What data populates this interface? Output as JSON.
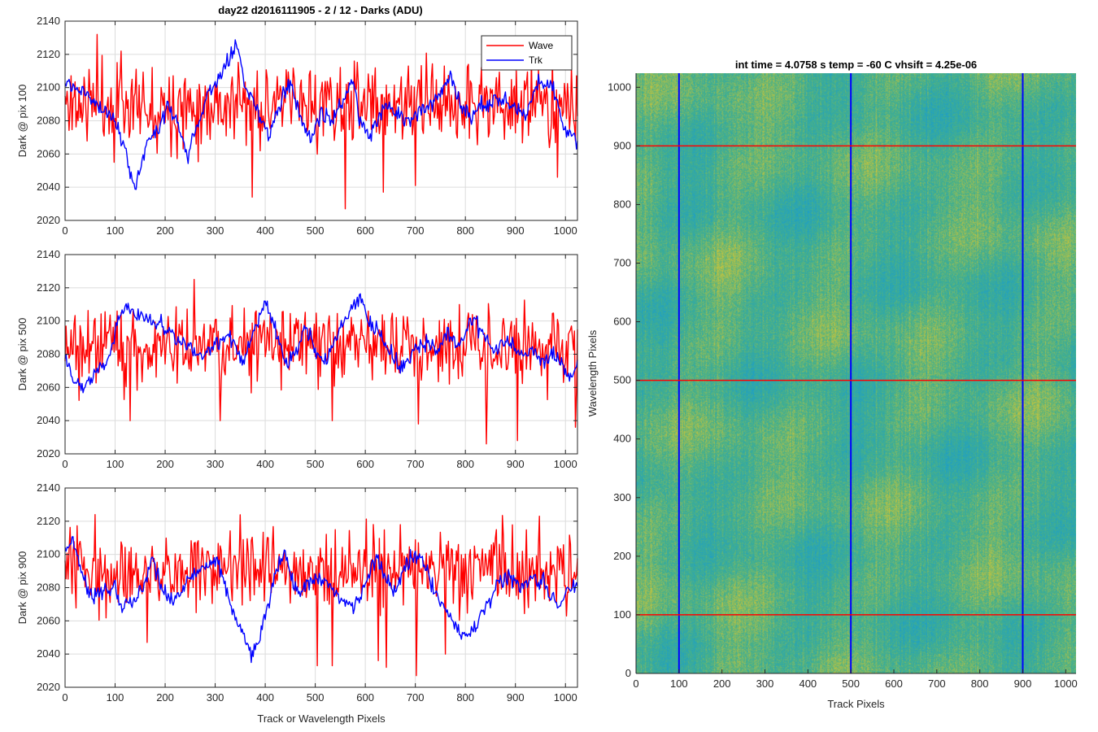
{
  "figure": {
    "title": "day22 d2016111905 - 2 / 12 - Darks (ADU)"
  },
  "chart_data": [
    {
      "type": "line",
      "ylabel": "Dark @ pix 100",
      "xlabel": "",
      "xlim": [
        0,
        1024
      ],
      "ylim": [
        2020,
        2140
      ],
      "xticks": [
        0,
        100,
        200,
        300,
        400,
        500,
        600,
        700,
        800,
        900,
        1000
      ],
      "yticks": [
        2020,
        2040,
        2060,
        2080,
        2100,
        2120,
        2140
      ],
      "grid": true,
      "legend": {
        "location": "top-right",
        "entries": [
          "Wave",
          "Trk"
        ]
      },
      "series": [
        {
          "name": "Wave",
          "color": "#ff0000",
          "mean": 2090,
          "noise": 12,
          "seed": 11,
          "sample_every": 2,
          "spikes": [
            [
              65,
              2132
            ],
            [
              98,
              2055
            ],
            [
              112,
              2122
            ],
            [
              375,
              2034
            ],
            [
              560,
              2027
            ],
            [
              637,
              2037
            ],
            [
              700,
              2041
            ],
            [
              985,
              2046
            ]
          ]
        },
        {
          "name": "Trk",
          "color": "#0000ff",
          "noise": 4,
          "seed": 12,
          "sample_every": 2,
          "anchors": [
            [
              0,
              2103
            ],
            [
              20,
              2102
            ],
            [
              60,
              2092
            ],
            [
              95,
              2082
            ],
            [
              110,
              2072
            ],
            [
              122,
              2062
            ],
            [
              130,
              2045
            ],
            [
              140,
              2041
            ],
            [
              165,
              2068
            ],
            [
              190,
              2076
            ],
            [
              205,
              2090
            ],
            [
              225,
              2078
            ],
            [
              245,
              2058
            ],
            [
              265,
              2078
            ],
            [
              285,
              2098
            ],
            [
              305,
              2103
            ],
            [
              325,
              2116
            ],
            [
              345,
              2127
            ],
            [
              360,
              2100
            ],
            [
              385,
              2086
            ],
            [
              408,
              2070
            ],
            [
              420,
              2083
            ],
            [
              450,
              2105
            ],
            [
              470,
              2082
            ],
            [
              490,
              2068
            ],
            [
              510,
              2085
            ],
            [
              535,
              2080
            ],
            [
              555,
              2093
            ],
            [
              575,
              2105
            ],
            [
              590,
              2080
            ],
            [
              610,
              2072
            ],
            [
              640,
              2089
            ],
            [
              665,
              2083
            ],
            [
              690,
              2080
            ],
            [
              720,
              2090
            ],
            [
              745,
              2095
            ],
            [
              770,
              2107
            ],
            [
              790,
              2090
            ],
            [
              810,
              2083
            ],
            [
              830,
              2088
            ],
            [
              860,
              2094
            ],
            [
              890,
              2090
            ],
            [
              920,
              2083
            ],
            [
              950,
              2106
            ],
            [
              975,
              2101
            ],
            [
              995,
              2076
            ],
            [
              1024,
              2068
            ]
          ]
        }
      ]
    },
    {
      "type": "line",
      "ylabel": "Dark @ pix 500",
      "xlabel": "",
      "xlim": [
        0,
        1024
      ],
      "ylim": [
        2020,
        2140
      ],
      "xticks": [
        0,
        100,
        200,
        300,
        400,
        500,
        600,
        700,
        800,
        900,
        1000
      ],
      "yticks": [
        2020,
        2040,
        2060,
        2080,
        2100,
        2120,
        2140
      ],
      "grid": true,
      "series": [
        {
          "name": "Wave",
          "color": "#ff0000",
          "mean": 2085,
          "noise": 12,
          "seed": 21,
          "sample_every": 2,
          "spikes": [
            [
              130,
              2040
            ],
            [
              258,
              2125
            ],
            [
              310,
              2040
            ],
            [
              535,
              2040
            ],
            [
              707,
              2038
            ],
            [
              842,
              2026
            ],
            [
              905,
              2028
            ],
            [
              1020,
              2036
            ]
          ]
        },
        {
          "name": "Trk",
          "color": "#0000ff",
          "noise": 4,
          "seed": 22,
          "sample_every": 2,
          "anchors": [
            [
              0,
              2080
            ],
            [
              15,
              2068
            ],
            [
              35,
              2060
            ],
            [
              60,
              2068
            ],
            [
              80,
              2075
            ],
            [
              95,
              2086
            ],
            [
              105,
              2098
            ],
            [
              120,
              2110
            ],
            [
              145,
              2103
            ],
            [
              170,
              2100
            ],
            [
              200,
              2096
            ],
            [
              230,
              2088
            ],
            [
              255,
              2082
            ],
            [
              275,
              2078
            ],
            [
              300,
              2086
            ],
            [
              330,
              2090
            ],
            [
              355,
              2077
            ],
            [
              380,
              2094
            ],
            [
              400,
              2110
            ],
            [
              420,
              2095
            ],
            [
              440,
              2076
            ],
            [
              460,
              2078
            ],
            [
              480,
              2096
            ],
            [
              500,
              2084
            ],
            [
              520,
              2076
            ],
            [
              550,
              2096
            ],
            [
              575,
              2108
            ],
            [
              590,
              2113
            ],
            [
              610,
              2099
            ],
            [
              630,
              2092
            ],
            [
              650,
              2080
            ],
            [
              670,
              2072
            ],
            [
              690,
              2079
            ],
            [
              720,
              2088
            ],
            [
              745,
              2082
            ],
            [
              765,
              2092
            ],
            [
              790,
              2084
            ],
            [
              810,
              2102
            ],
            [
              830,
              2095
            ],
            [
              860,
              2081
            ],
            [
              885,
              2088
            ],
            [
              910,
              2079
            ],
            [
              935,
              2082
            ],
            [
              960,
              2076
            ],
            [
              985,
              2080
            ],
            [
              1005,
              2066
            ],
            [
              1024,
              2072
            ]
          ]
        }
      ]
    },
    {
      "type": "line",
      "ylabel": "Dark @ pix 900",
      "xlabel": "Track or Wavelength Pixels",
      "xlim": [
        0,
        1024
      ],
      "ylim": [
        2020,
        2140
      ],
      "xticks": [
        0,
        100,
        200,
        300,
        400,
        500,
        600,
        700,
        800,
        900,
        1000
      ],
      "yticks": [
        2020,
        2040,
        2060,
        2080,
        2100,
        2120,
        2140
      ],
      "grid": true,
      "series": [
        {
          "name": "Wave",
          "color": "#ff0000",
          "mean": 2090,
          "noise": 12,
          "seed": 31,
          "sample_every": 2,
          "spikes": [
            [
              60,
              2124
            ],
            [
              165,
              2047
            ],
            [
              505,
              2033
            ],
            [
              535,
              2033
            ],
            [
              627,
              2036
            ],
            [
              643,
              2032
            ],
            [
              702,
              2027
            ],
            [
              760,
              2040
            ]
          ]
        },
        {
          "name": "Trk",
          "color": "#0000ff",
          "noise": 4,
          "seed": 32,
          "sample_every": 2,
          "anchors": [
            [
              0,
              2103
            ],
            [
              15,
              2108
            ],
            [
              35,
              2088
            ],
            [
              55,
              2074
            ],
            [
              80,
              2080
            ],
            [
              100,
              2078
            ],
            [
              115,
              2068
            ],
            [
              135,
              2072
            ],
            [
              155,
              2080
            ],
            [
              175,
              2098
            ],
            [
              195,
              2078
            ],
            [
              215,
              2071
            ],
            [
              235,
              2082
            ],
            [
              255,
              2088
            ],
            [
              285,
              2094
            ],
            [
              305,
              2098
            ],
            [
              320,
              2078
            ],
            [
              345,
              2060
            ],
            [
              370,
              2040
            ],
            [
              385,
              2046
            ],
            [
              405,
              2070
            ],
            [
              425,
              2094
            ],
            [
              440,
              2101
            ],
            [
              460,
              2077
            ],
            [
              480,
              2080
            ],
            [
              505,
              2086
            ],
            [
              525,
              2082
            ],
            [
              555,
              2072
            ],
            [
              580,
              2068
            ],
            [
              600,
              2082
            ],
            [
              620,
              2099
            ],
            [
              640,
              2088
            ],
            [
              660,
              2076
            ],
            [
              680,
              2094
            ],
            [
              700,
              2100
            ],
            [
              715,
              2096
            ],
            [
              740,
              2076
            ],
            [
              760,
              2068
            ],
            [
              785,
              2055
            ],
            [
              800,
              2050
            ],
            [
              820,
              2057
            ],
            [
              845,
              2072
            ],
            [
              865,
              2082
            ],
            [
              890,
              2088
            ],
            [
              910,
              2080
            ],
            [
              935,
              2087
            ],
            [
              960,
              2082
            ],
            [
              985,
              2070
            ],
            [
              1000,
              2076
            ],
            [
              1024,
              2080
            ]
          ]
        }
      ]
    },
    {
      "type": "heatmap",
      "title": "int time = 4.0758 s    temp = -60 C    vhsift = 4.25e-06",
      "xlabel": "Track Pixels",
      "ylabel": "Wavelength Pixels",
      "xlim": [
        0,
        1024
      ],
      "ylim": [
        0,
        1024
      ],
      "xticks": [
        0,
        100,
        200,
        300,
        400,
        500,
        600,
        700,
        800,
        900,
        1000
      ],
      "yticks": [
        0,
        100,
        200,
        300,
        400,
        500,
        600,
        700,
        800,
        900,
        1000
      ],
      "colormap": "parula",
      "colors": {
        "low": "#1c9ec9",
        "mid": "#45b08a",
        "high": "#c9c43a"
      },
      "vertical_lines": {
        "x": [
          100,
          500,
          900
        ],
        "color": "#0000ff"
      },
      "horizontal_lines": {
        "y": [
          100,
          500,
          900
        ],
        "color": "#ff0000"
      }
    }
  ]
}
